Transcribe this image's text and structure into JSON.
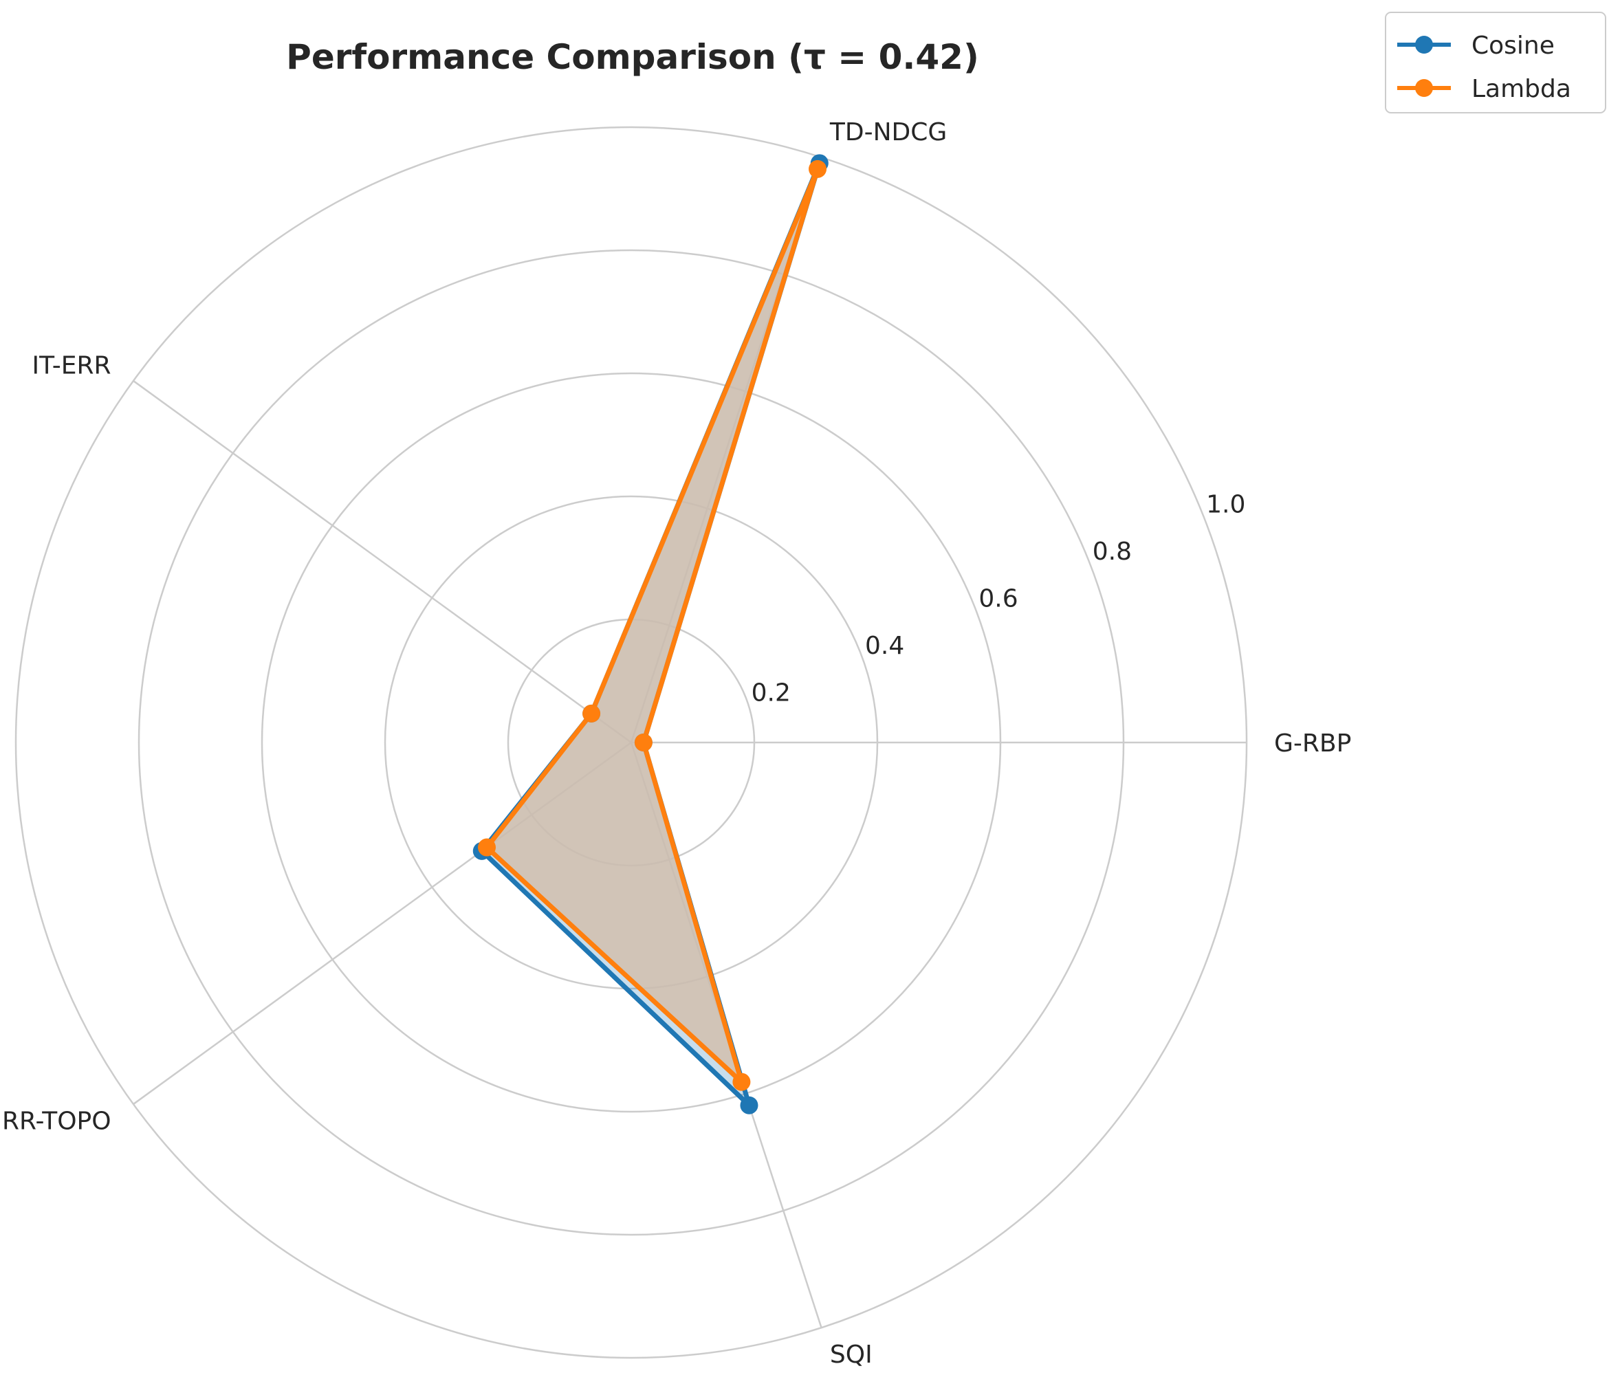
{
  "chart_data": {
    "type": "radar",
    "title": "Performance Comparison (τ = 0.42)",
    "axes": [
      "G-RBP",
      "TD-NDCG",
      "IT-ERR",
      "MRR-TOPO",
      "SQI"
    ],
    "radial_ticks": [
      "0.2",
      "0.4",
      "0.6",
      "0.8",
      "1.0"
    ],
    "rlim": [
      0,
      1.0
    ],
    "grid": true,
    "legend_position": "top-right",
    "series": [
      {
        "name": "Cosine",
        "color": "#1f77b4",
        "values": [
          0.02,
          0.99,
          0.08,
          0.3,
          0.62
        ]
      },
      {
        "name": "Lambda",
        "color": "#ff7f0e",
        "values": [
          0.02,
          0.98,
          0.08,
          0.29,
          0.58
        ]
      }
    ],
    "fill_color": "#d2bfae"
  }
}
